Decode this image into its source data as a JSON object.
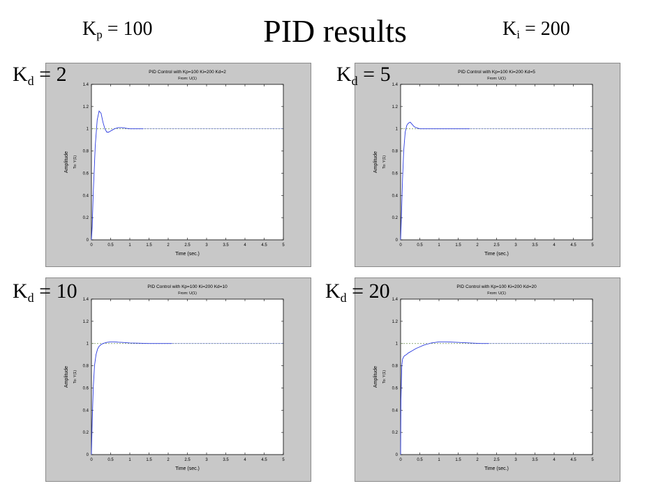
{
  "slide": {
    "title": "PID results",
    "kp": {
      "base": "K",
      "sub": "p",
      "rest": " = 100"
    },
    "ki": {
      "base": "K",
      "sub": "i",
      "rest": " = 200"
    }
  },
  "chart_data": [
    {
      "type": "line",
      "label": {
        "base": "K",
        "sub": "d",
        "rest": " = 2"
      },
      "title": "PID Control with Kp=100 Ki=200 Kd=2",
      "subtitle": "From: U(1)",
      "xlabel": "Time (sec.)",
      "ylabel": "Amplitude",
      "ylabel2": "To: Y(1)",
      "xlim": [
        0,
        5
      ],
      "ylim": [
        0,
        1.4
      ],
      "xticks": [
        "0",
        "0.5",
        "1",
        "1.5",
        "2",
        "2.5",
        "3",
        "3.5",
        "4",
        "4.5",
        "5"
      ],
      "yticks": [
        "0",
        "0.2",
        "0.4",
        "0.6",
        "0.8",
        "1",
        "1.2",
        "1.4"
      ],
      "reference": 1,
      "grid": false,
      "series": [
        {
          "x": [
            0,
            0.02,
            0.05,
            0.1,
            0.15,
            0.2,
            0.25,
            0.3,
            0.35,
            0.4,
            0.45,
            0.5,
            0.55,
            0.6,
            0.7,
            0.8,
            0.9,
            1.0,
            1.1,
            1.2,
            1.3,
            1.35
          ],
          "y": [
            0,
            0.12,
            0.45,
            0.85,
            1.08,
            1.16,
            1.14,
            1.06,
            1.0,
            0.97,
            0.97,
            0.98,
            0.99,
            1.0,
            1.01,
            1.01,
            1.005,
            1.0,
            1.0,
            1.0,
            1.0,
            1.0
          ]
        }
      ]
    },
    {
      "type": "line",
      "label": {
        "base": "K",
        "sub": "d",
        "rest": " = 5"
      },
      "title": "PID Control with Kp=100 Ki=200 Kd=5",
      "subtitle": "From: U(1)",
      "xlabel": "Time (sec.)",
      "ylabel": "Amplitude",
      "ylabel2": "To: Y(1)",
      "xlim": [
        0,
        5
      ],
      "ylim": [
        0,
        1.4
      ],
      "xticks": [
        "0",
        "0.5",
        "1",
        "1.5",
        "2",
        "2.5",
        "3",
        "3.5",
        "4",
        "4.5",
        "5"
      ],
      "yticks": [
        "0",
        "0.2",
        "0.4",
        "0.6",
        "0.8",
        "1",
        "1.2",
        "1.4"
      ],
      "reference": 1,
      "grid": false,
      "series": [
        {
          "x": [
            0,
            0.02,
            0.05,
            0.08,
            0.12,
            0.16,
            0.2,
            0.25,
            0.3,
            0.35,
            0.4,
            0.5,
            0.6,
            0.8,
            1.0,
            1.2,
            1.5,
            1.8
          ],
          "y": [
            0,
            0.2,
            0.55,
            0.8,
            0.97,
            1.03,
            1.05,
            1.06,
            1.04,
            1.02,
            1.01,
            1.0,
            1.0,
            1.0,
            1.0,
            1.0,
            1.0,
            1.0
          ]
        }
      ]
    },
    {
      "type": "line",
      "label": {
        "base": "K",
        "sub": "d",
        "rest": " = 10"
      },
      "title": "PID Control with Kp=100 Ki=200 Kd=10",
      "subtitle": "From: U(1)",
      "xlabel": "Time (sec.)",
      "ylabel": "Amplitude",
      "ylabel2": "To: Y(1)",
      "xlim": [
        0,
        5
      ],
      "ylim": [
        0,
        1.4
      ],
      "xticks": [
        "0",
        "0.5",
        "1",
        "1.5",
        "2",
        "2.5",
        "3",
        "3.5",
        "4",
        "4.5",
        "5"
      ],
      "yticks": [
        "0",
        "0.2",
        "0.4",
        "0.6",
        "0.8",
        "1",
        "1.2",
        "1.4"
      ],
      "reference": 1,
      "grid": false,
      "series": [
        {
          "x": [
            0,
            0.02,
            0.05,
            0.08,
            0.12,
            0.16,
            0.2,
            0.25,
            0.3,
            0.4,
            0.5,
            0.6,
            0.7,
            0.8,
            1.0,
            1.2,
            1.5,
            1.8,
            2.1
          ],
          "y": [
            0,
            0.3,
            0.62,
            0.8,
            0.9,
            0.95,
            0.975,
            0.99,
            1.0,
            1.01,
            1.015,
            1.015,
            1.012,
            1.01,
            1.005,
            1.003,
            1.0,
            1.0,
            1.0
          ]
        }
      ]
    },
    {
      "type": "line",
      "label": {
        "base": "K",
        "sub": "d",
        "rest": " = 20"
      },
      "title": "PID Control with Kp=100 Ki=200 Kd=20",
      "subtitle": "From: U(1)",
      "xlabel": "Time (sec.)",
      "ylabel": "Amplitude",
      "ylabel2": "To: Y(1)",
      "xlim": [
        0,
        5
      ],
      "ylim": [
        0,
        1.4
      ],
      "xticks": [
        "0",
        "0.5",
        "1",
        "1.5",
        "2",
        "2.5",
        "3",
        "3.5",
        "4",
        "4.5",
        "5"
      ],
      "yticks": [
        "0",
        "0.2",
        "0.4",
        "0.6",
        "0.8",
        "1",
        "1.2",
        "1.4"
      ],
      "reference": 1,
      "grid": false,
      "series": [
        {
          "x": [
            0,
            0.01,
            0.03,
            0.05,
            0.08,
            0.1,
            0.15,
            0.2,
            0.3,
            0.4,
            0.5,
            0.6,
            0.7,
            0.8,
            1.0,
            1.2,
            1.5,
            1.8,
            2.1,
            2.3
          ],
          "y": [
            0,
            0.5,
            0.8,
            0.86,
            0.88,
            0.89,
            0.9,
            0.915,
            0.935,
            0.955,
            0.97,
            0.985,
            0.995,
            1.005,
            1.015,
            1.015,
            1.01,
            1.005,
            1.0,
            1.0
          ]
        }
      ]
    }
  ]
}
